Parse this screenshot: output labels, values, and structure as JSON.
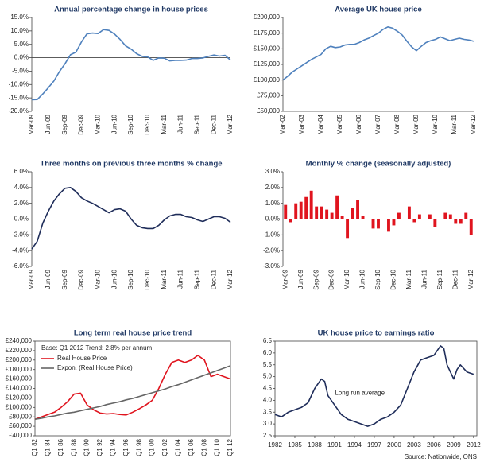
{
  "chart_data": [
    {
      "type": "line",
      "title": "Annual percentage change in house prices",
      "categories": [
        "Mar-09",
        null,
        null,
        "Jun-09",
        null,
        null,
        "Sep-09",
        null,
        null,
        "Dec-09",
        null,
        null,
        "Mar-10",
        null,
        null,
        "Jun-10",
        null,
        null,
        "Sep-10",
        null,
        null,
        "Dec-10",
        null,
        null,
        "Mar-11",
        null,
        null,
        "Jun-11",
        null,
        null,
        "Sep-11",
        null,
        null,
        "Dec-11",
        null,
        null,
        "Mar-12"
      ],
      "values": [
        -15.7,
        -15.6,
        -13.5,
        -11.2,
        -8.7,
        -5.2,
        -2.3,
        1.1,
        2.1,
        5.9,
        8.9,
        9.2,
        9.0,
        10.5,
        10.2,
        8.8,
        6.8,
        4.4,
        3.2,
        1.5,
        0.5,
        0.3,
        -1.0,
        -0.1,
        -0.2,
        -1.2,
        -1.0,
        -1.0,
        -0.9,
        -0.3,
        -0.3,
        -0.1,
        0.5,
        1.0,
        0.6,
        0.9,
        -0.9
      ],
      "color": "#4f81bd",
      "ylim": [
        -20,
        15
      ],
      "yticks": [
        {
          "value": -20,
          "label": "-20.0%"
        },
        {
          "value": -15,
          "label": "-15.0%"
        },
        {
          "value": -10,
          "label": "-10.0%"
        },
        {
          "value": -5,
          "label": "-5.0%"
        },
        {
          "value": 0,
          "label": "0.0%"
        },
        {
          "value": 5,
          "label": "5.0%"
        },
        {
          "value": 10,
          "label": "10.0%"
        },
        {
          "value": 15,
          "label": "15.0%"
        }
      ]
    },
    {
      "type": "line",
      "title": "Average UK house price",
      "categories": [
        "Mar-02",
        null,
        null,
        null,
        "Mar-03",
        null,
        null,
        null,
        "Mar-04",
        null,
        null,
        null,
        "Mar-05",
        null,
        null,
        null,
        "Mar-06",
        null,
        null,
        null,
        "Mar-07",
        null,
        null,
        null,
        "Mar-08",
        null,
        null,
        null,
        "Mar-09",
        null,
        null,
        null,
        "Mar-10",
        null,
        null,
        null,
        "Mar-11",
        null,
        null,
        null,
        "Mar-12"
      ],
      "values": [
        100000,
        106000,
        113000,
        118000,
        123000,
        128000,
        133000,
        137000,
        141000,
        150000,
        154000,
        152000,
        153000,
        156000,
        157000,
        157000,
        160000,
        164000,
        167000,
        171000,
        175000,
        181000,
        185000,
        183000,
        178000,
        172000,
        162000,
        153000,
        147000,
        154000,
        160000,
        163000,
        165000,
        169000,
        166000,
        163000,
        165000,
        167000,
        165000,
        164000,
        162000
      ],
      "color": "#4f81bd",
      "ylim": [
        50000,
        200000
      ],
      "yticks": [
        {
          "value": 50000,
          "label": "£50,000"
        },
        {
          "value": 75000,
          "label": "£75,000"
        },
        {
          "value": 100000,
          "label": "£100,000"
        },
        {
          "value": 125000,
          "label": "£125,000"
        },
        {
          "value": 150000,
          "label": "£150,000"
        },
        {
          "value": 175000,
          "label": "£175,000"
        },
        {
          "value": 200000,
          "label": "£200,000"
        }
      ]
    },
    {
      "type": "line",
      "title": "Three months on previous three months % change",
      "categories": [
        "Mar-09",
        null,
        null,
        "Jun-09",
        null,
        null,
        "Sep-09",
        null,
        null,
        "Dec-09",
        null,
        null,
        "Mar-10",
        null,
        null,
        "Jun-10",
        null,
        null,
        "Sep-10",
        null,
        null,
        "Dec-10",
        null,
        null,
        "Mar-11",
        null,
        null,
        "Jun-11",
        null,
        null,
        "Sep-11",
        null,
        null,
        "Dec-11",
        null,
        null,
        "Mar-12"
      ],
      "values": [
        -3.8,
        -2.8,
        -0.5,
        1.0,
        2.3,
        3.2,
        3.9,
        4.0,
        3.5,
        2.7,
        2.3,
        2.0,
        1.6,
        1.2,
        0.8,
        1.2,
        1.3,
        1.0,
        0.0,
        -0.8,
        -1.1,
        -1.2,
        -1.2,
        -0.8,
        -0.1,
        0.4,
        0.6,
        0.6,
        0.3,
        0.2,
        -0.1,
        -0.3,
        0.0,
        0.3,
        0.3,
        0.1,
        -0.4
      ],
      "color": "#1f2d5a",
      "ylim": [
        -6,
        6
      ],
      "yticks": [
        {
          "value": -6,
          "label": "-6.0%"
        },
        {
          "value": -4,
          "label": "-4.0%"
        },
        {
          "value": -2,
          "label": "-2.0%"
        },
        {
          "value": 0,
          "label": "0.0%"
        },
        {
          "value": 2,
          "label": "2.0%"
        },
        {
          "value": 4,
          "label": "4.0%"
        },
        {
          "value": 6,
          "label": "6.0%"
        }
      ]
    },
    {
      "type": "bar",
      "title": "Monthly % change (seasonally adjusted)",
      "categories": [
        "Mar-09",
        null,
        null,
        "Jun-09",
        null,
        null,
        "Sep-09",
        null,
        null,
        "Dec-09",
        null,
        null,
        "Mar-10",
        null,
        null,
        "Jun-10",
        null,
        null,
        "Sep-10",
        null,
        null,
        "Dec-10",
        null,
        null,
        "Mar-11",
        null,
        null,
        "Jun-11",
        null,
        null,
        "Sep-11",
        null,
        null,
        "Dec-11",
        null,
        null,
        "Mar-12"
      ],
      "values": [
        0.9,
        -0.2,
        1.0,
        1.1,
        1.4,
        1.8,
        0.8,
        0.8,
        0.6,
        0.4,
        1.5,
        0.2,
        -1.2,
        0.7,
        1.2,
        0.2,
        0.0,
        -0.6,
        -0.6,
        0.0,
        -0.8,
        -0.4,
        0.4,
        0.0,
        0.8,
        -0.2,
        0.3,
        0.0,
        0.3,
        -0.5,
        0.0,
        0.4,
        0.3,
        -0.3,
        -0.3,
        0.4,
        -1.0
      ],
      "color": "#e0141e",
      "ylim": [
        -3,
        3
      ],
      "yticks": [
        {
          "value": -3,
          "label": "-3.0%"
        },
        {
          "value": -2,
          "label": "-2.0%"
        },
        {
          "value": -1,
          "label": "-1.0%"
        },
        {
          "value": 0,
          "label": "0.0%"
        },
        {
          "value": 1,
          "label": "1.0%"
        },
        {
          "value": 2,
          "label": "2.0%"
        },
        {
          "value": 3,
          "label": "3.0%"
        }
      ]
    },
    {
      "type": "line",
      "title": "Long term real house price trend",
      "annotation": "Base: Q1 2012 Trend: 2.8% per annum",
      "categories": [
        "Q1 82",
        null,
        "Q1 84",
        null,
        "Q1 86",
        null,
        "Q1 88",
        null,
        "Q1 90",
        null,
        "Q1 92",
        null,
        "Q1 94",
        null,
        "Q1 96",
        null,
        "Q1 98",
        null,
        "Q1 00",
        null,
        "Q1 02",
        null,
        "Q1 04",
        null,
        "Q1 06",
        null,
        "Q1 08",
        null,
        "Q1 10",
        null,
        "Q1 12"
      ],
      "series": [
        {
          "name": "Real House Price",
          "color": "#e0141e",
          "values": [
            75000,
            80000,
            85000,
            90000,
            100000,
            112000,
            128000,
            130000,
            105000,
            95000,
            88000,
            86000,
            87000,
            85000,
            84000,
            90000,
            97000,
            105000,
            115000,
            140000,
            170000,
            195000,
            200000,
            195000,
            200000,
            210000,
            200000,
            165000,
            170000,
            165000,
            160000
          ]
        },
        {
          "name": "Expon. (Real House Price)",
          "color": "#666666",
          "values": [
            75000,
            77000,
            80000,
            82000,
            85000,
            88000,
            90000,
            93000,
            96000,
            99000,
            102000,
            106000,
            109000,
            112000,
            116000,
            119000,
            123000,
            127000,
            131000,
            135000,
            139000,
            144000,
            148000,
            153000,
            158000,
            163000,
            168000,
            173000,
            178000,
            183000,
            188000
          ]
        }
      ],
      "legend": "upper left",
      "frame": true,
      "ylim": [
        40000,
        240000
      ],
      "yticks": [
        {
          "value": 40000,
          "label": "£40,000"
        },
        {
          "value": 60000,
          "label": "£60,000"
        },
        {
          "value": 80000,
          "label": "£80,000"
        },
        {
          "value": 100000,
          "label": "£100,000"
        },
        {
          "value": 120000,
          "label": "£120,000"
        },
        {
          "value": 140000,
          "label": "£140,000"
        },
        {
          "value": 160000,
          "label": "£160,000"
        },
        {
          "value": 180000,
          "label": "£180,000"
        },
        {
          "value": 200000,
          "label": "£200,000"
        },
        {
          "value": 220000,
          "label": "£220,000"
        },
        {
          "value": 240000,
          "label": "£240,000"
        }
      ]
    },
    {
      "type": "line",
      "title": "UK house price to earnings ratio",
      "source": "Source: Nationwide, ONS",
      "x": [
        1982,
        1983,
        1984,
        1985,
        1986,
        1987,
        1988,
        1989,
        1989.5,
        1990,
        1991,
        1992,
        1993,
        1994,
        1995,
        1996,
        1997,
        1998,
        1999,
        2000,
        2001,
        2002,
        2003,
        2004,
        2005,
        2006,
        2007,
        2007.5,
        2008,
        2009,
        2009.5,
        2010,
        2011,
        2012
      ],
      "values": [
        3.4,
        3.3,
        3.5,
        3.6,
        3.7,
        3.9,
        4.5,
        4.9,
        4.8,
        4.2,
        3.8,
        3.4,
        3.2,
        3.1,
        3.0,
        2.9,
        3.0,
        3.2,
        3.3,
        3.5,
        3.8,
        4.5,
        5.2,
        5.7,
        5.8,
        5.9,
        6.3,
        6.2,
        5.5,
        4.9,
        5.3,
        5.5,
        5.2,
        5.1
      ],
      "color": "#1f2d5a",
      "frame": true,
      "reference_line": {
        "value": 4.1,
        "label": "Long run average"
      },
      "xlim": [
        1982,
        2012.5
      ],
      "xticks": [
        1982,
        1985,
        1988,
        1991,
        1994,
        1997,
        2000,
        2003,
        2006,
        2009,
        2012
      ],
      "ylim": [
        2.5,
        6.5
      ],
      "yticks": [
        2.5,
        {
          "value": 3,
          "label": "3.0"
        },
        3.5,
        {
          "value": 4,
          "label": "4.0"
        },
        4.5,
        {
          "value": 5,
          "label": "5.0"
        },
        5.5,
        {
          "value": 6,
          "label": "6.0"
        },
        6.5
      ]
    }
  ]
}
